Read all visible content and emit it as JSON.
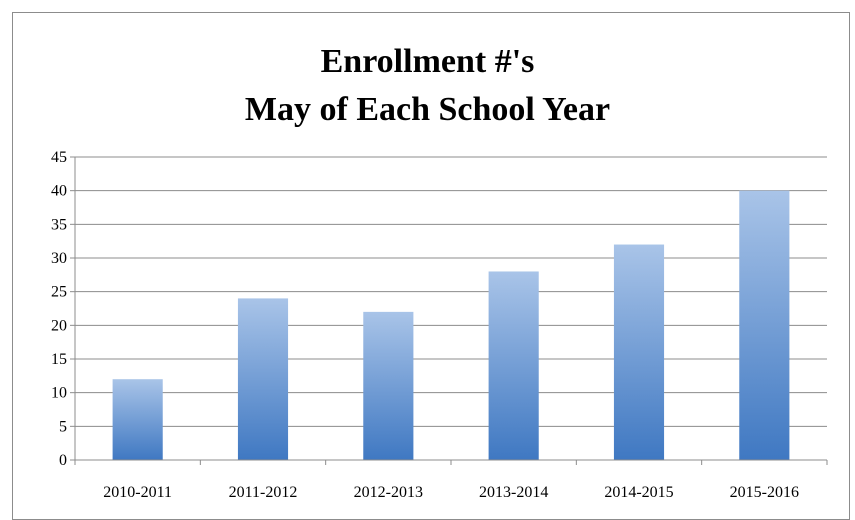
{
  "chart_data": {
    "type": "bar",
    "title_lines": [
      "Enrollment #'s",
      "May of Each School Year"
    ],
    "categories": [
      "2010-2011",
      "2011-2012",
      "2012-2013",
      "2013-2014",
      "2014-2015",
      "2015-2016"
    ],
    "values": [
      12,
      24,
      22,
      28,
      32,
      40
    ],
    "xlabel": "",
    "ylabel": "",
    "ylim": [
      0,
      45
    ],
    "yticks": [
      0,
      5,
      10,
      15,
      20,
      25,
      30,
      35,
      40,
      45
    ],
    "grid": true,
    "legend": "none",
    "colors": {
      "bar_top": "#a9c4e8",
      "bar_bottom": "#3f78c2",
      "grid": "#8c8c8c",
      "axis": "#8c8c8c"
    }
  }
}
